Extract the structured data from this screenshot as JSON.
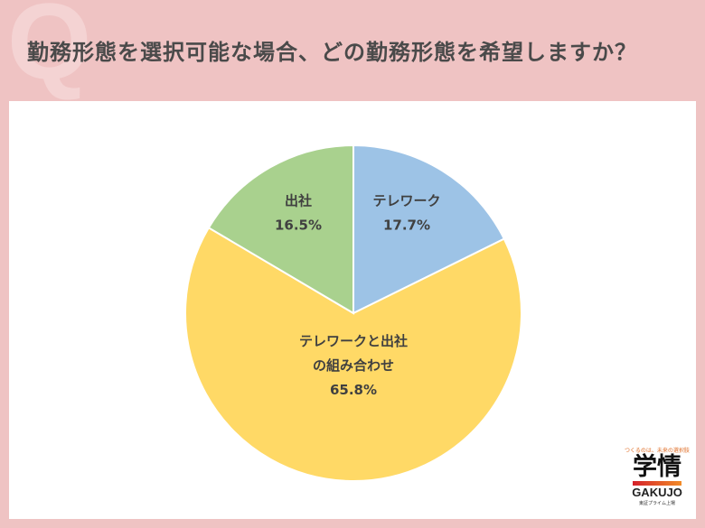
{
  "header": {
    "q_mark": "Q",
    "title": "勤務形態を選択可能な場合、どの勤務形態を希望しますか？"
  },
  "chart_data": {
    "type": "pie",
    "title": "勤務形態を選択可能な場合、どの勤務形態を希望しますか？",
    "start": "top, clockwise",
    "slices": [
      {
        "label": "テレワーク",
        "label_lines": [
          "テレワーク"
        ],
        "value": 17.7,
        "value_text": "17.7%",
        "color": "#9dc3e6"
      },
      {
        "label": "テレワークと出社の組み合わせ",
        "label_lines": [
          "テレワークと出社",
          "の組み合わせ"
        ],
        "value": 65.8,
        "value_text": "65.8%",
        "color": "#ffd966"
      },
      {
        "label": "出社",
        "label_lines": [
          "出社"
        ],
        "value": 16.5,
        "value_text": "16.5%",
        "color": "#a9d18e"
      }
    ]
  },
  "logo": {
    "tagline": "つくるのは、未来の選択肢",
    "kanji": "学情",
    "english": "GAKUJO",
    "listing": "東証プライム上場"
  }
}
